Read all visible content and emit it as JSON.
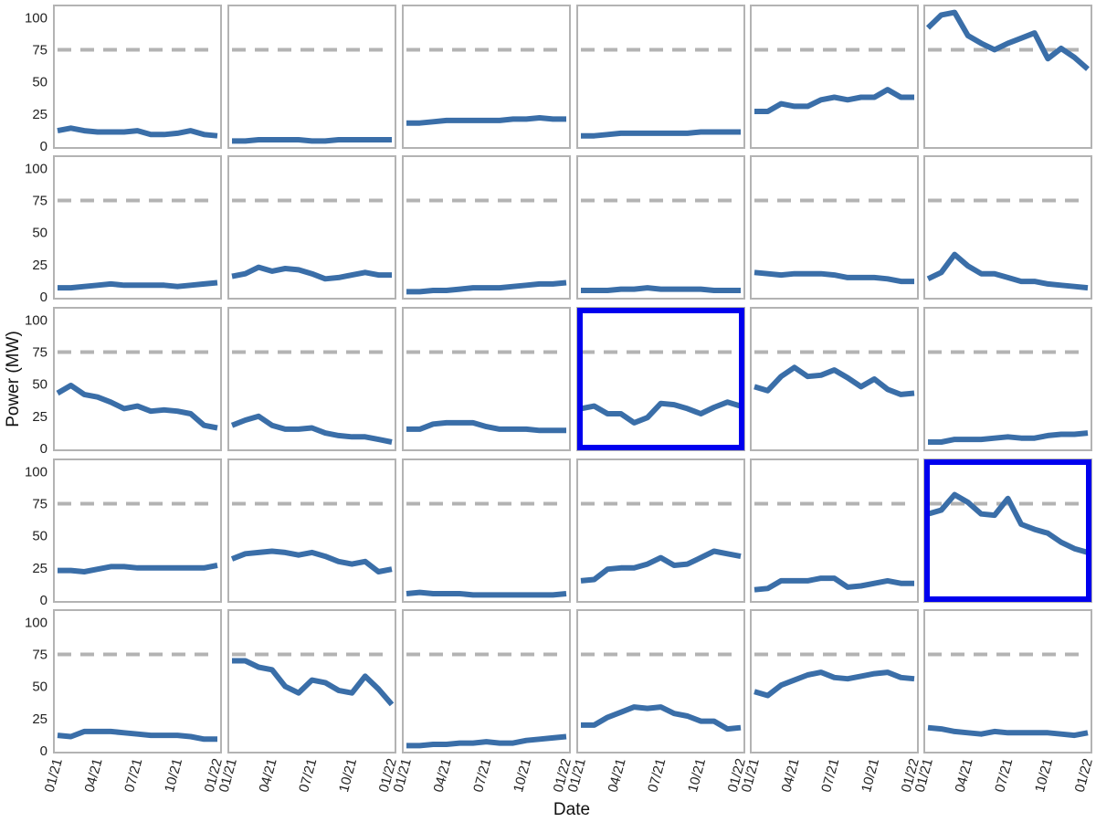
{
  "chart_data": {
    "type": "line",
    "layout": "small-multiples",
    "rows": 5,
    "cols": 6,
    "xlabel": "Date",
    "ylabel": "Power (MW)",
    "ylim": [
      0,
      108
    ],
    "y_ticks": [
      0,
      25,
      50,
      75,
      100
    ],
    "x_ticks": [
      "01/21",
      "04/21",
      "07/21",
      "10/21",
      "01/22"
    ],
    "x_range_months": [
      0,
      12
    ],
    "reference_line": 75,
    "grid": false,
    "colors": {
      "line": "#3a6ea8",
      "reference": "#b3b3b3",
      "panel_border": "#b3b3b3",
      "highlight": "#0000ee"
    },
    "highlighted_panels": [
      15,
      23
    ],
    "panels": [
      {
        "values": [
          12,
          14,
          12,
          11,
          11,
          11,
          12,
          9,
          9,
          10,
          12,
          9,
          8
        ]
      },
      {
        "values": [
          4,
          4,
          5,
          5,
          5,
          5,
          4,
          4,
          5,
          5,
          5,
          5,
          5
        ]
      },
      {
        "values": [
          18,
          18,
          19,
          20,
          20,
          20,
          20,
          20,
          21,
          21,
          22,
          21,
          21
        ]
      },
      {
        "values": [
          8,
          8,
          9,
          10,
          10,
          10,
          10,
          10,
          10,
          11,
          11,
          11,
          11
        ]
      },
      {
        "values": [
          27,
          27,
          33,
          31,
          31,
          36,
          38,
          36,
          38,
          38,
          44,
          38,
          38
        ]
      },
      {
        "values": [
          92,
          102,
          104,
          86,
          80,
          75,
          80,
          84,
          88,
          68,
          76,
          69,
          60
        ]
      },
      {
        "values": [
          7,
          7,
          8,
          9,
          10,
          9,
          9,
          9,
          9,
          8,
          9,
          10,
          11
        ]
      },
      {
        "values": [
          16,
          18,
          23,
          20,
          22,
          21,
          18,
          14,
          15,
          17,
          19,
          17,
          17
        ]
      },
      {
        "values": [
          4,
          4,
          5,
          5,
          6,
          7,
          7,
          7,
          8,
          9,
          10,
          10,
          11
        ]
      },
      {
        "values": [
          5,
          5,
          5,
          6,
          6,
          7,
          6,
          6,
          6,
          6,
          5,
          5,
          5
        ]
      },
      {
        "values": [
          19,
          18,
          17,
          18,
          18,
          18,
          17,
          15,
          15,
          15,
          14,
          12,
          12
        ]
      },
      {
        "values": [
          14,
          19,
          33,
          24,
          18,
          18,
          15,
          12,
          12,
          10,
          9,
          8,
          7
        ]
      },
      {
        "values": [
          43,
          49,
          42,
          40,
          36,
          31,
          33,
          29,
          30,
          29,
          27,
          18,
          16
        ]
      },
      {
        "values": [
          18,
          22,
          25,
          18,
          15,
          15,
          16,
          12,
          10,
          9,
          9,
          7,
          5
        ]
      },
      {
        "values": [
          15,
          15,
          19,
          20,
          20,
          20,
          17,
          15,
          15,
          15,
          14,
          14,
          14
        ]
      },
      {
        "values": [
          31,
          33,
          27,
          27,
          20,
          24,
          35,
          34,
          31,
          27,
          32,
          36,
          33
        ]
      },
      {
        "values": [
          48,
          45,
          56,
          63,
          56,
          57,
          61,
          55,
          48,
          54,
          46,
          42,
          43
        ]
      },
      {
        "values": [
          5,
          5,
          7,
          7,
          7,
          8,
          9,
          8,
          8,
          10,
          11,
          11,
          12
        ]
      },
      {
        "values": [
          23,
          23,
          22,
          24,
          26,
          26,
          25,
          25,
          25,
          25,
          25,
          25,
          27
        ]
      },
      {
        "values": [
          32,
          36,
          37,
          38,
          37,
          35,
          37,
          34,
          30,
          28,
          30,
          22,
          24
        ]
      },
      {
        "values": [
          5,
          6,
          5,
          5,
          5,
          4,
          4,
          4,
          4,
          4,
          4,
          4,
          5
        ]
      },
      {
        "values": [
          15,
          16,
          24,
          25,
          25,
          28,
          33,
          27,
          28,
          33,
          38,
          36,
          34
        ]
      },
      {
        "values": [
          8,
          9,
          15,
          15,
          15,
          17,
          17,
          10,
          11,
          13,
          15,
          13,
          13
        ]
      },
      {
        "values": [
          67,
          70,
          82,
          76,
          67,
          66,
          79,
          59,
          55,
          52,
          45,
          40,
          37
        ]
      },
      {
        "values": [
          12,
          11,
          15,
          15,
          15,
          14,
          13,
          12,
          12,
          12,
          11,
          9,
          9
        ]
      },
      {
        "values": [
          70,
          70,
          65,
          63,
          50,
          45,
          55,
          53,
          47,
          45,
          58,
          48,
          36
        ]
      },
      {
        "values": [
          4,
          4,
          5,
          5,
          6,
          6,
          7,
          6,
          6,
          8,
          9,
          10,
          11
        ]
      },
      {
        "values": [
          20,
          20,
          26,
          30,
          34,
          33,
          34,
          29,
          27,
          23,
          23,
          17,
          18
        ]
      },
      {
        "values": [
          46,
          43,
          51,
          55,
          59,
          61,
          57,
          56,
          58,
          60,
          61,
          57,
          56
        ]
      },
      {
        "values": [
          18,
          17,
          15,
          14,
          13,
          15,
          14,
          14,
          14,
          14,
          13,
          12,
          14
        ]
      }
    ]
  }
}
